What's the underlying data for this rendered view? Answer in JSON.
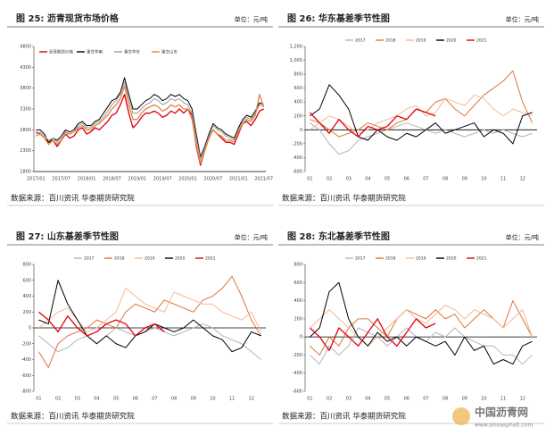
{
  "chart_data": [
    {
      "type": "line",
      "title": "图 25: 沥青现货市场价格",
      "unit_label": "单位：元/吨",
      "source": "数据来源：百川资讯 华泰期货研究院",
      "categories": [
        "2017/01",
        null,
        null,
        null,
        null,
        null,
        "2017/07",
        null,
        null,
        null,
        null,
        null,
        "2018/01",
        null,
        null,
        null,
        null,
        null,
        "2018/07",
        null,
        null,
        null,
        null,
        null,
        "2019/01",
        null,
        null,
        null,
        null,
        null,
        "2019/07",
        null,
        null,
        null,
        null,
        null,
        "2020/01",
        null,
        null,
        null,
        null,
        null,
        "2020/07",
        null,
        null,
        null,
        null,
        null,
        "2021/01",
        null,
        null,
        null,
        null,
        null,
        "2021/07"
      ],
      "ylim": [
        1800,
        4800
      ],
      "yticks": [
        1800,
        2300,
        2800,
        3300,
        3800,
        4300,
        4800
      ],
      "legend": "top-left",
      "series": [
        {
          "name": "沥青期货价格",
          "color": "#d7000f",
          "values": [
            2750,
            2700,
            2600,
            2500,
            2550,
            2400,
            2550,
            2700,
            2600,
            2650,
            2800,
            2850,
            2700,
            2750,
            2850,
            2800,
            2900,
            3000,
            3150,
            3200,
            3400,
            3650,
            3200,
            2850,
            2950,
            3100,
            3200,
            3200,
            3250,
            3200,
            3100,
            3150,
            3250,
            3200,
            3300,
            3200,
            3300,
            3150,
            2400,
            1950,
            2300,
            2600,
            2800,
            2700,
            2600,
            2500,
            2500,
            2450,
            2700,
            2950,
            3000,
            2900,
            3050,
            3250,
            3300
          ]
        },
        {
          "name": "重交华南",
          "color": "#000000",
          "values": [
            2800,
            2800,
            2700,
            2500,
            2600,
            2550,
            2650,
            2800,
            2750,
            2800,
            2950,
            3000,
            2900,
            2900,
            3000,
            3050,
            3200,
            3350,
            3500,
            3550,
            3700,
            4050,
            3650,
            3300,
            3300,
            3400,
            3500,
            3550,
            3650,
            3600,
            3500,
            3550,
            3650,
            3600,
            3650,
            3550,
            3500,
            3300,
            2700,
            2150,
            2400,
            2700,
            2950,
            2850,
            2800,
            2700,
            2650,
            2600,
            2850,
            3050,
            3150,
            3100,
            3250,
            3450,
            3400
          ]
        },
        {
          "name": "重交华东",
          "color": "#9a9a9a",
          "values": [
            2700,
            2750,
            2650,
            2550,
            2600,
            2500,
            2600,
            2700,
            2700,
            2750,
            2900,
            2950,
            2850,
            2850,
            2950,
            3000,
            3100,
            3250,
            3400,
            3500,
            3650,
            3950,
            3550,
            3200,
            3200,
            3300,
            3400,
            3450,
            3550,
            3500,
            3400,
            3450,
            3550,
            3500,
            3550,
            3450,
            3400,
            3200,
            2600,
            2100,
            2350,
            2650,
            2900,
            2800,
            2750,
            2650,
            2600,
            2550,
            2800,
            3000,
            3100,
            3050,
            3200,
            3400,
            3350
          ]
        },
        {
          "name": "重交山东",
          "color": "#e8823a",
          "values": [
            2650,
            2700,
            2600,
            2450,
            2550,
            2450,
            2550,
            2750,
            2700,
            2750,
            2850,
            2900,
            2800,
            2800,
            2900,
            2950,
            3050,
            3150,
            3300,
            3400,
            3550,
            3850,
            3400,
            3050,
            3050,
            3200,
            3300,
            3350,
            3400,
            3350,
            3250,
            3300,
            3400,
            3350,
            3400,
            3300,
            3300,
            3050,
            2450,
            2000,
            2300,
            2600,
            2800,
            2700,
            2650,
            2550,
            2550,
            2500,
            2750,
            2950,
            3050,
            3000,
            3150,
            3650,
            3350
          ]
        }
      ]
    },
    {
      "type": "line",
      "title": "图 26: 华东基差季节性图",
      "unit_label": "单位：元/吨",
      "source": "数据来源：百川资讯 华泰期货研究院",
      "categories": [
        "01",
        null,
        "02",
        null,
        "03",
        null,
        "04",
        null,
        "05",
        null,
        "06",
        null,
        "07",
        null,
        "08",
        null,
        "09",
        null,
        "10",
        null,
        "11",
        null,
        "12",
        null
      ],
      "ylim": [
        -600,
        1200
      ],
      "yticks": [
        -600,
        -400,
        -200,
        0,
        200,
        400,
        600,
        800,
        {
          "value": 1000,
          "label": "1,000"
        },
        {
          "value": 1200,
          "label": "1,200"
        }
      ],
      "legend": "top",
      "series": [
        {
          "name": "2017",
          "color": "#b4b4b4",
          "values": [
            100,
            0,
            -200,
            -350,
            -300,
            -150,
            -100,
            -50,
            0,
            50,
            100,
            50,
            0,
            -50,
            0,
            -50,
            -100,
            -50,
            0,
            -50,
            0,
            -50,
            -100,
            -50
          ]
        },
        {
          "name": "2018",
          "color": "#d9773a",
          "values": [
            150,
            100,
            0,
            -100,
            -50,
            0,
            100,
            50,
            0,
            100,
            150,
            300,
            250,
            400,
            450,
            300,
            200,
            350,
            500,
            600,
            700,
            850,
            400,
            100
          ]
        },
        {
          "name": "2019",
          "color": "#f5b895",
          "values": [
            0,
            100,
            200,
            150,
            50,
            -50,
            0,
            100,
            150,
            200,
            300,
            350,
            200,
            250,
            450,
            400,
            350,
            500,
            450,
            300,
            200,
            300,
            250,
            200
          ]
        },
        {
          "name": "2020",
          "color": "#000000",
          "values": [
            200,
            300,
            650,
            500,
            300,
            -100,
            -150,
            0,
            -100,
            -150,
            -50,
            -100,
            0,
            100,
            -50,
            0,
            50,
            100,
            -100,
            0,
            -50,
            -200,
            200,
            250
          ]
        },
        {
          "name": "2021",
          "color": "#e00010",
          "values": [
            250,
            100,
            -50,
            150,
            0,
            -100,
            50,
            0,
            50,
            200,
            150,
            300,
            250,
            200,
            null,
            null,
            null,
            null,
            null,
            null,
            null,
            null,
            null,
            null
          ]
        }
      ]
    },
    {
      "type": "line",
      "title": "图 27: 山东基差季节性图",
      "unit_label": "单位：元/吨",
      "source": "数据来源：百川资讯 华泰期货研究院",
      "categories": [
        "01",
        null,
        "02",
        null,
        "03",
        null,
        "04",
        null,
        "05",
        null,
        "06",
        null,
        "07",
        null,
        "08",
        null,
        "09",
        null,
        "10",
        null,
        "11",
        null,
        "12",
        null
      ],
      "ylim": [
        -800,
        800
      ],
      "yticks": [
        -800,
        -600,
        -400,
        -200,
        0,
        200,
        400,
        600,
        800
      ],
      "legend": "top",
      "series": [
        {
          "name": "2017",
          "color": "#b4b4b4",
          "values": [
            -100,
            -200,
            -300,
            -250,
            -150,
            -100,
            -200,
            -100,
            0,
            -50,
            -100,
            -50,
            0,
            -50,
            -100,
            -50,
            0,
            50,
            0,
            -100,
            -150,
            -200,
            -300,
            -400
          ]
        },
        {
          "name": "2018",
          "color": "#d9773a",
          "values": [
            -300,
            -500,
            -200,
            -100,
            -50,
            0,
            100,
            50,
            0,
            200,
            300,
            250,
            200,
            350,
            300,
            250,
            200,
            350,
            400,
            500,
            650,
            400,
            100,
            -100
          ]
        },
        {
          "name": "2019",
          "color": "#f5b895",
          "values": [
            0,
            100,
            200,
            250,
            100,
            -50,
            0,
            100,
            200,
            500,
            400,
            300,
            250,
            200,
            450,
            400,
            350,
            300,
            300,
            200,
            150,
            100,
            200,
            -50
          ]
        },
        {
          "name": "2020",
          "color": "#000000",
          "values": [
            100,
            50,
            600,
            300,
            100,
            -100,
            -200,
            -100,
            -200,
            -250,
            -100,
            -50,
            50,
            0,
            -50,
            0,
            100,
            0,
            -100,
            -150,
            -300,
            -250,
            -50,
            -100
          ]
        },
        {
          "name": "2021",
          "color": "#e00010",
          "values": [
            200,
            100,
            -50,
            150,
            0,
            -100,
            -50,
            50,
            100,
            50,
            -100,
            0,
            50,
            -50,
            null,
            null,
            null,
            null,
            null,
            null,
            null,
            null,
            null,
            null
          ]
        }
      ]
    },
    {
      "type": "line",
      "title": "图 28: 东北基差季节性图",
      "unit_label": "单位：元/吨",
      "source": "数据来源：百川资讯 华泰期货研究院",
      "categories": [
        "01",
        null,
        "02",
        null,
        "03",
        null,
        "04",
        null,
        "05",
        null,
        "06",
        null,
        "07",
        null,
        "08",
        null,
        "09",
        null,
        "10",
        null,
        "11",
        null,
        "12",
        null
      ],
      "ylim": [
        -600,
        800
      ],
      "yticks": [
        -600,
        -400,
        -200,
        0,
        200,
        400,
        600,
        800
      ],
      "legend": "top",
      "series": [
        {
          "name": "2017",
          "color": "#b4b4b4",
          "values": [
            -200,
            -300,
            -100,
            -200,
            -100,
            100,
            50,
            0,
            -100,
            0,
            100,
            0,
            -50,
            50,
            0,
            100,
            0,
            -50,
            -100,
            -100,
            -200,
            -200,
            -300,
            -200
          ]
        },
        {
          "name": "2018",
          "color": "#d9773a",
          "values": [
            -100,
            -200,
            0,
            -100,
            100,
            200,
            200,
            100,
            0,
            200,
            300,
            250,
            200,
            300,
            200,
            250,
            100,
            200,
            300,
            200,
            100,
            400,
            200,
            0
          ]
        },
        {
          "name": "2019",
          "color": "#f5b895",
          "values": [
            100,
            200,
            300,
            200,
            100,
            0,
            -100,
            0,
            100,
            200,
            300,
            200,
            150,
            250,
            350,
            300,
            200,
            300,
            250,
            200,
            100,
            200,
            300,
            0
          ]
        },
        {
          "name": "2020",
          "color": "#000000",
          "values": [
            0,
            100,
            500,
            600,
            200,
            0,
            -100,
            50,
            -50,
            0,
            -100,
            0,
            -50,
            -100,
            -50,
            -200,
            0,
            -150,
            -100,
            -300,
            -250,
            -300,
            -100,
            -50
          ]
        },
        {
          "name": "2021",
          "color": "#e00010",
          "values": [
            100,
            0,
            -150,
            100,
            0,
            -100,
            50,
            200,
            0,
            -100,
            50,
            200,
            100,
            150,
            null,
            null,
            null,
            null,
            null,
            null,
            null,
            null,
            null,
            null
          ]
        }
      ]
    }
  ],
  "watermark": {
    "name": "中国沥青网",
    "url": "www.sinoasphalt.com"
  }
}
